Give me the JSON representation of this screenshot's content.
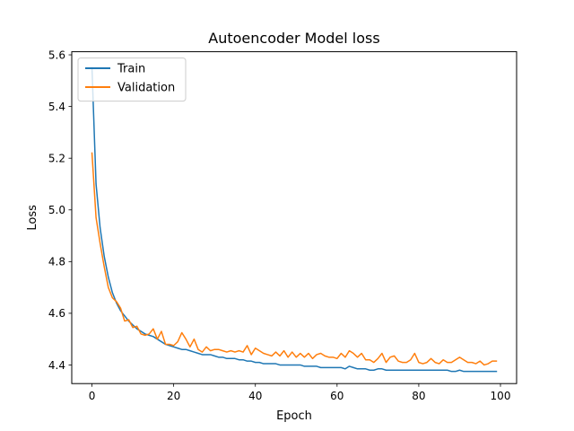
{
  "chart_data": {
    "type": "line",
    "title": "Autoencoder Model loss",
    "xlabel": "Epoch",
    "ylabel": "Loss",
    "xlim": [
      -4.95,
      103.95
    ],
    "ylim": [
      4.328,
      5.612
    ],
    "xticks": [
      0,
      20,
      40,
      60,
      80,
      100
    ],
    "yticks": [
      4.4,
      4.6,
      4.8,
      5.0,
      5.2,
      5.4,
      5.6
    ],
    "xtick_labels": [
      "0",
      "20",
      "40",
      "60",
      "80",
      "100"
    ],
    "ytick_labels": [
      "4.4",
      "4.6",
      "4.8",
      "5.0",
      "5.2",
      "5.4",
      "5.6"
    ],
    "grid": false,
    "legend_position": "top-left",
    "series": [
      {
        "name": "Train",
        "color": "#1f77b4",
        "values": [
          5.55,
          5.1,
          4.93,
          4.82,
          4.74,
          4.68,
          4.64,
          4.61,
          4.59,
          4.57,
          4.555,
          4.54,
          4.53,
          4.52,
          4.515,
          4.51,
          4.5,
          4.49,
          4.48,
          4.475,
          4.47,
          4.465,
          4.46,
          4.46,
          4.455,
          4.45,
          4.445,
          4.44,
          4.44,
          4.44,
          4.435,
          4.43,
          4.43,
          4.425,
          4.425,
          4.425,
          4.42,
          4.42,
          4.415,
          4.415,
          4.41,
          4.41,
          4.405,
          4.405,
          4.405,
          4.405,
          4.4,
          4.4,
          4.4,
          4.4,
          4.4,
          4.4,
          4.395,
          4.395,
          4.395,
          4.395,
          4.39,
          4.39,
          4.39,
          4.39,
          4.39,
          4.39,
          4.385,
          4.395,
          4.39,
          4.385,
          4.385,
          4.385,
          4.38,
          4.38,
          4.385,
          4.385,
          4.38,
          4.38,
          4.38,
          4.38,
          4.38,
          4.38,
          4.38,
          4.38,
          4.38,
          4.38,
          4.38,
          4.38,
          4.38,
          4.38,
          4.38,
          4.38,
          4.375,
          4.375,
          4.38,
          4.375,
          4.375,
          4.375,
          4.375,
          4.375,
          4.375,
          4.375,
          4.375,
          4.375
        ]
      },
      {
        "name": "Validation",
        "color": "#ff7f0e",
        "values": [
          5.22,
          4.97,
          4.87,
          4.78,
          4.7,
          4.66,
          4.645,
          4.62,
          4.57,
          4.575,
          4.545,
          4.55,
          4.52,
          4.515,
          4.52,
          4.54,
          4.5,
          4.53,
          4.48,
          4.48,
          4.475,
          4.49,
          4.525,
          4.5,
          4.47,
          4.5,
          4.46,
          4.45,
          4.47,
          4.455,
          4.46,
          4.46,
          4.455,
          4.45,
          4.455,
          4.45,
          4.455,
          4.45,
          4.475,
          4.44,
          4.465,
          4.455,
          4.445,
          4.44,
          4.435,
          4.45,
          4.435,
          4.455,
          4.43,
          4.45,
          4.43,
          4.445,
          4.43,
          4.445,
          4.425,
          4.44,
          4.445,
          4.435,
          4.43,
          4.43,
          4.425,
          4.445,
          4.43,
          4.455,
          4.445,
          4.43,
          4.445,
          4.42,
          4.42,
          4.41,
          4.425,
          4.445,
          4.41,
          4.43,
          4.435,
          4.415,
          4.41,
          4.41,
          4.42,
          4.445,
          4.41,
          4.405,
          4.41,
          4.425,
          4.41,
          4.405,
          4.42,
          4.41,
          4.41,
          4.42,
          4.43,
          4.42,
          4.41,
          4.41,
          4.405,
          4.415,
          4.4,
          4.405,
          4.415,
          4.415
        ]
      }
    ]
  }
}
